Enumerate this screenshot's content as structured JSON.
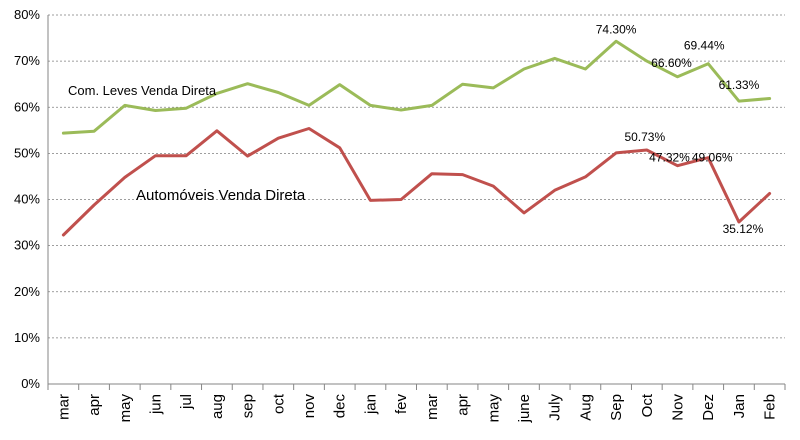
{
  "chart_data": {
    "type": "line",
    "ylim": [
      0,
      80
    ],
    "y_ticks": [
      "0%",
      "10%",
      "20%",
      "30%",
      "40%",
      "50%",
      "60%",
      "70%",
      "80%"
    ],
    "y_tick_values": [
      0,
      10,
      20,
      30,
      40,
      50,
      60,
      70,
      80
    ],
    "grid": true,
    "categories": [
      "mar",
      "apr",
      "may",
      "jun",
      "jul",
      "aug",
      "sep",
      "oct",
      "nov",
      "dec",
      "jan",
      "fev",
      "mar",
      "apr",
      "may",
      "june",
      "July",
      "Aug",
      "Sep",
      "Oct",
      "Nov",
      "Dez",
      "Jan",
      "Feb"
    ],
    "series": [
      {
        "name": "Com. Leves Venda Direta",
        "color": "#9bbb59",
        "values": [
          54.4,
          54.8,
          60.4,
          59.3,
          59.8,
          63.0,
          65.1,
          63.2,
          60.4,
          64.9,
          60.4,
          59.4,
          60.4,
          65.0,
          64.2,
          68.3,
          70.6,
          68.3,
          74.3,
          70.0,
          66.6,
          69.44,
          61.33,
          61.9
        ]
      },
      {
        "name": "Automóveis Venda Direta",
        "color": "#c0504d",
        "values": [
          32.3,
          38.8,
          44.8,
          49.5,
          49.5,
          54.9,
          49.4,
          53.3,
          55.4,
          51.2,
          39.8,
          40.0,
          45.6,
          45.4,
          42.9,
          37.1,
          42.0,
          44.9,
          50.1,
          50.73,
          47.32,
          49.06,
          35.12,
          41.3
        ]
      }
    ],
    "annotations": [
      {
        "text": "74.30%",
        "series": 0,
        "index": 18
      },
      {
        "text": "66.60%",
        "series": 0,
        "index": 20
      },
      {
        "text": "69.44%",
        "series": 0,
        "index": 21
      },
      {
        "text": "61.33%",
        "series": 0,
        "index": 22
      },
      {
        "text": "50.73%",
        "series": 1,
        "index": 19
      },
      {
        "text": "47.32%",
        "series": 1,
        "index": 20
      },
      {
        "text": "49.06%",
        "series": 1,
        "index": 21
      },
      {
        "text": "35.12%",
        "series": 1,
        "index": 22
      }
    ]
  }
}
